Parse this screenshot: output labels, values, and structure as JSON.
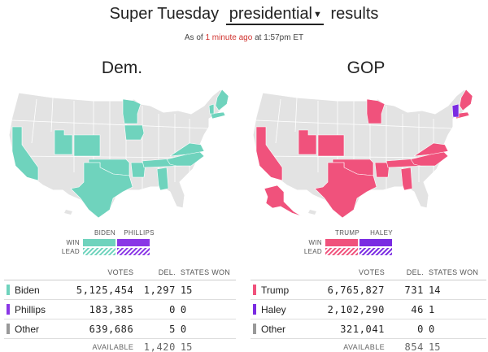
{
  "header": {
    "prefix": "Super Tuesday",
    "selected_race": "presidential",
    "suffix": "results",
    "timestamp_prefix": "As of",
    "timestamp_ago": "1 minute ago",
    "timestamp_suffix": "at 1:57pm ET"
  },
  "colors": {
    "biden": "#6fd3bd",
    "phillips": "#8a37e6",
    "trump": "#f0527c",
    "haley": "#7a2be2",
    "other": "#999999",
    "state_base": "#e3e3e3"
  },
  "dem": {
    "title": "Dem.",
    "legend": {
      "cand1": "BIDEN",
      "cand2": "PHILLIPS",
      "win": "WIN",
      "lead": "LEAD"
    },
    "headers": {
      "votes": "VOTES",
      "delegates": "DEL.",
      "states_won": "STATES WON"
    },
    "rows": [
      {
        "name": "Biden",
        "votes": "5,125,454",
        "delegates": "1,297",
        "states_won": "15"
      },
      {
        "name": "Phillips",
        "votes": "183,385",
        "delegates": "0",
        "states_won": "0"
      },
      {
        "name": "Other",
        "votes": "639,686",
        "delegates": "5",
        "states_won": "0"
      }
    ],
    "available": {
      "label": "AVAILABLE",
      "delegates": "1,420",
      "states": "15"
    }
  },
  "gop": {
    "title": "GOP",
    "legend": {
      "cand1": "TRUMP",
      "cand2": "HALEY",
      "win": "WIN",
      "lead": "LEAD"
    },
    "headers": {
      "votes": "VOTES",
      "delegates": "DEL.",
      "states_won": "STATES WON"
    },
    "rows": [
      {
        "name": "Trump",
        "votes": "6,765,827",
        "delegates": "731",
        "states_won": "14"
      },
      {
        "name": "Haley",
        "votes": "2,102,290",
        "delegates": "46",
        "states_won": "1"
      },
      {
        "name": "Other",
        "votes": "321,041",
        "delegates": "0",
        "states_won": "0"
      }
    ],
    "available": {
      "label": "AVAILABLE",
      "delegates": "854",
      "states": "15"
    }
  }
}
